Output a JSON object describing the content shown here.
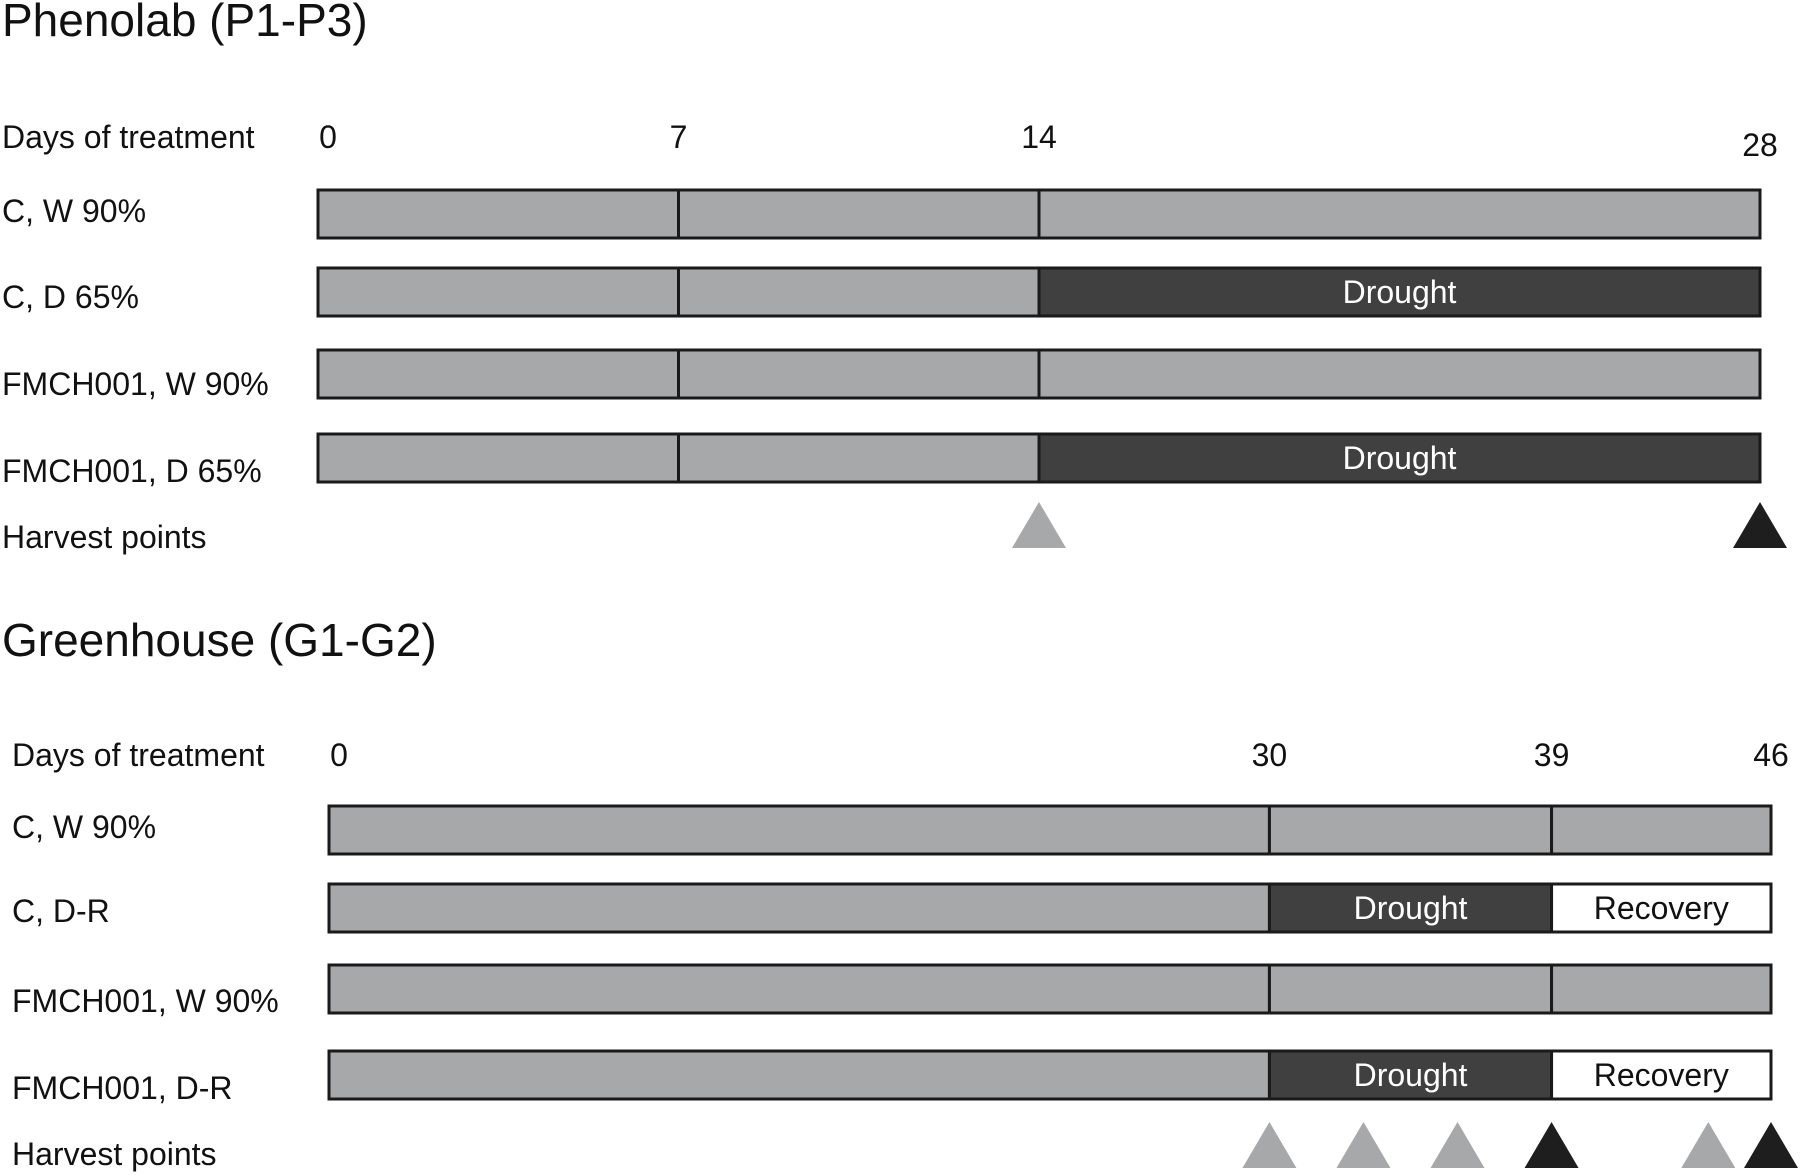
{
  "colors": {
    "normal": "#a7a8aa",
    "drought": "#404040",
    "recovery": "#ffffff",
    "harvest_gray": "#a7a8aa",
    "harvest_black": "#1e1e1e"
  },
  "panels": [
    {
      "title": "Phenolab (P1-P3)",
      "axis_label": "Days of treatment",
      "ticks": [
        "0",
        "7",
        "14",
        "28"
      ],
      "tick_days": [
        0,
        7,
        14,
        28
      ],
      "max_day": 28,
      "rows": [
        {
          "label": "C, W 90%",
          "segments": [
            {
              "from": 0,
              "to": 7,
              "kind": "normal",
              "text": ""
            },
            {
              "from": 7,
              "to": 14,
              "kind": "normal",
              "text": ""
            },
            {
              "from": 14,
              "to": 28,
              "kind": "normal",
              "text": ""
            }
          ]
        },
        {
          "label": "C, D 65%",
          "segments": [
            {
              "from": 0,
              "to": 7,
              "kind": "normal",
              "text": ""
            },
            {
              "from": 7,
              "to": 14,
              "kind": "normal",
              "text": ""
            },
            {
              "from": 14,
              "to": 28,
              "kind": "drought",
              "text": "Drought"
            }
          ]
        },
        {
          "label": "FMCH001, W 90%",
          "segments": [
            {
              "from": 0,
              "to": 7,
              "kind": "normal",
              "text": ""
            },
            {
              "from": 7,
              "to": 14,
              "kind": "normal",
              "text": ""
            },
            {
              "from": 14,
              "to": 28,
              "kind": "normal",
              "text": ""
            }
          ]
        },
        {
          "label": "FMCH001, D 65%",
          "segments": [
            {
              "from": 0,
              "to": 7,
              "kind": "normal",
              "text": ""
            },
            {
              "from": 7,
              "to": 14,
              "kind": "normal",
              "text": ""
            },
            {
              "from": 14,
              "to": 28,
              "kind": "drought",
              "text": "Drought"
            }
          ]
        }
      ],
      "harvest_label": "Harvest points",
      "harvest": [
        {
          "day": 14,
          "color": "gray"
        },
        {
          "day": 28,
          "color": "black"
        }
      ]
    },
    {
      "title": "Greenhouse (G1-G2)",
      "axis_label": "Days of treatment",
      "ticks": [
        "0",
        "30",
        "39",
        "46"
      ],
      "tick_days": [
        0,
        30,
        39,
        46
      ],
      "max_day": 46,
      "rows": [
        {
          "label": "C, W 90%",
          "segments": [
            {
              "from": 0,
              "to": 30,
              "kind": "normal",
              "text": ""
            },
            {
              "from": 30,
              "to": 39,
              "kind": "normal",
              "text": ""
            },
            {
              "from": 39,
              "to": 46,
              "kind": "normal",
              "text": ""
            }
          ]
        },
        {
          "label": "C, D-R",
          "segments": [
            {
              "from": 0,
              "to": 30,
              "kind": "normal",
              "text": ""
            },
            {
              "from": 30,
              "to": 39,
              "kind": "drought",
              "text": "Drought"
            },
            {
              "from": 39,
              "to": 46,
              "kind": "recovery",
              "text": "Recovery"
            }
          ]
        },
        {
          "label": "FMCH001, W 90%",
          "segments": [
            {
              "from": 0,
              "to": 30,
              "kind": "normal",
              "text": ""
            },
            {
              "from": 30,
              "to": 39,
              "kind": "normal",
              "text": ""
            },
            {
              "from": 39,
              "to": 46,
              "kind": "normal",
              "text": ""
            }
          ]
        },
        {
          "label": "FMCH001, D-R",
          "segments": [
            {
              "from": 0,
              "to": 30,
              "kind": "normal",
              "text": ""
            },
            {
              "from": 30,
              "to": 39,
              "kind": "drought",
              "text": "Drought"
            },
            {
              "from": 39,
              "to": 46,
              "kind": "recovery",
              "text": "Recovery"
            }
          ]
        }
      ],
      "harvest_label": "Harvest points",
      "harvest": [
        {
          "day": 30,
          "color": "gray"
        },
        {
          "day": 33,
          "color": "gray"
        },
        {
          "day": 36,
          "color": "gray"
        },
        {
          "day": 39,
          "color": "black"
        },
        {
          "day": 44,
          "color": "gray"
        },
        {
          "day": 46,
          "color": "black"
        }
      ]
    }
  ]
}
